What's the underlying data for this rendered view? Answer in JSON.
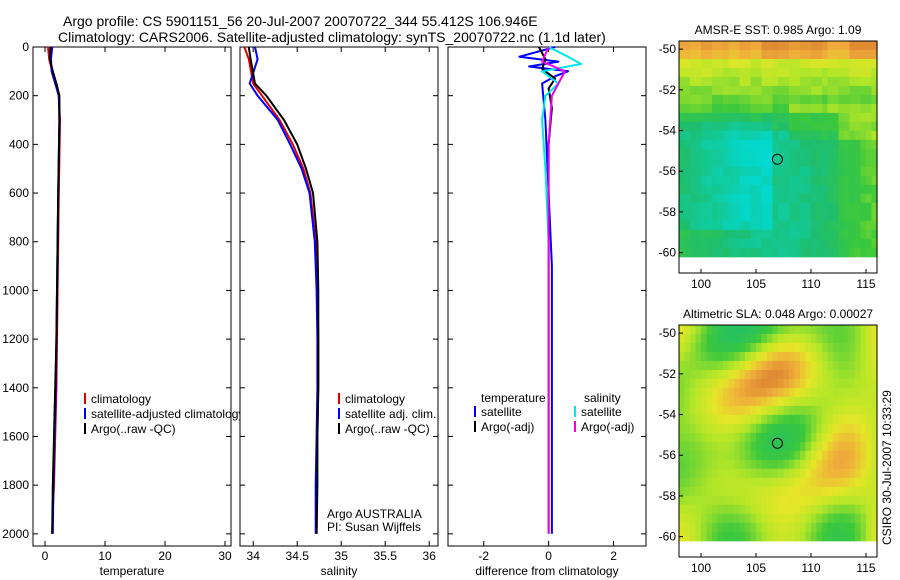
{
  "header": {
    "line1": "Argo profile: CS 5901151_56 20-Jul-2007 20070722_344 55.412S 106.946E",
    "line2": "Climatology: CARS2006. Satellite-adjusted climatology: synTS_20070722.nc (1.1d later)"
  },
  "credit": "CSIRO 30-Jul-2007 10:33:29",
  "colors": {
    "climatology": "#e00000",
    "satellite": "#0000ff",
    "argo": "#000000",
    "satellite_salinity": "#00e8ee",
    "argo_salinity": "#ee00ee"
  },
  "chart_data": [
    {
      "id": "temperature",
      "type": "line",
      "xlabel": "temperature",
      "ylabel": "",
      "xlim": [
        -2,
        31
      ],
      "ylim": [
        2050,
        0
      ],
      "xticks": [
        "0",
        "10",
        "20",
        "30"
      ],
      "xtick_values": [
        0,
        10,
        20,
        30
      ],
      "yticks": [
        "0",
        "200",
        "400",
        "600",
        "800",
        "1000",
        "1200",
        "1400",
        "1600",
        "1800",
        "2000"
      ],
      "ytick_values": [
        0,
        200,
        400,
        600,
        800,
        1000,
        1200,
        1400,
        1600,
        1800,
        2000
      ],
      "legend": [
        "climatology",
        "satellite-adjusted climatology",
        "Argo(..raw -QC)"
      ],
      "series": [
        {
          "name": "climatology",
          "color": "#e00000",
          "x": [
            0.5,
            0.7,
            1.2,
            1.8,
            2.3,
            2.5,
            2.4,
            2.3,
            2.2,
            2.1,
            2.0,
            1.9,
            1.7,
            1.5,
            1.3,
            1.2
          ],
          "y": [
            0,
            50,
            100,
            150,
            200,
            300,
            450,
            600,
            800,
            1000,
            1200,
            1400,
            1600,
            1800,
            1900,
            2000
          ]
        },
        {
          "name": "satellite-adjusted climatology",
          "color": "#0000ff",
          "x": [
            1.2,
            1.0,
            1.1,
            1.7,
            2.3,
            2.4,
            2.3,
            2.2,
            2.1,
            2.0,
            1.9,
            1.8,
            1.6,
            1.4,
            1.3
          ],
          "y": [
            0,
            50,
            100,
            150,
            200,
            300,
            450,
            600,
            800,
            1000,
            1200,
            1400,
            1600,
            1800,
            2000
          ]
        },
        {
          "name": "Argo(..raw -QC)",
          "color": "#000000",
          "x": [
            0.9,
            0.8,
            1.3,
            1.9,
            2.4,
            2.4,
            2.3,
            2.2,
            2.1,
            2.0,
            1.9,
            1.7,
            1.5,
            1.3,
            1.2
          ],
          "y": [
            0,
            50,
            100,
            150,
            200,
            300,
            450,
            600,
            800,
            1000,
            1200,
            1400,
            1600,
            1800,
            2000
          ]
        }
      ]
    },
    {
      "id": "salinity",
      "type": "line",
      "xlabel": "salinity",
      "ylabel": "",
      "xlim": [
        33.85,
        36.1
      ],
      "ylim": [
        2050,
        0
      ],
      "xticks": [
        "34",
        "34.5",
        "35",
        "35.5",
        "36"
      ],
      "xtick_values": [
        34,
        34.5,
        35,
        35.5,
        36
      ],
      "legend": [
        "climatology",
        "satellite adj. clim.",
        "Argo(..raw -QC)"
      ],
      "annotations": [
        "Argo AUSTRALIA",
        "PI: Susan Wijffels"
      ],
      "series": [
        {
          "name": "climatology",
          "color": "#e00000",
          "x": [
            33.9,
            33.95,
            34.0,
            34.1,
            34.3,
            34.45,
            34.57,
            34.65,
            34.71,
            34.73,
            34.74,
            34.74,
            34.73,
            34.72,
            34.72
          ],
          "y": [
            0,
            50,
            150,
            200,
            300,
            400,
            500,
            600,
            800,
            1000,
            1200,
            1400,
            1600,
            1800,
            2000
          ]
        },
        {
          "name": "satellite adj. clim.",
          "color": "#0000ff",
          "x": [
            34.02,
            34.05,
            33.96,
            34.05,
            34.28,
            34.42,
            34.55,
            34.64,
            34.7,
            34.72,
            34.73,
            34.73,
            34.72,
            34.71,
            34.71
          ],
          "y": [
            0,
            50,
            150,
            200,
            300,
            400,
            500,
            600,
            800,
            1000,
            1200,
            1400,
            1600,
            1800,
            2000
          ]
        },
        {
          "name": "Argo(..raw -QC)",
          "color": "#000000",
          "x": [
            33.95,
            33.97,
            34.02,
            34.15,
            34.35,
            34.5,
            34.6,
            34.68,
            34.73,
            34.74,
            34.74,
            34.74,
            34.73,
            34.73,
            34.72
          ],
          "y": [
            0,
            50,
            150,
            200,
            300,
            400,
            500,
            600,
            800,
            1000,
            1200,
            1400,
            1600,
            1800,
            2000
          ]
        }
      ]
    },
    {
      "id": "difference",
      "type": "line",
      "xlabel": "difference from climatology",
      "ylabel": "",
      "xlim": [
        -3.1,
        3.0
      ],
      "ylim": [
        2050,
        0
      ],
      "xticks": [
        "-2",
        "0",
        "2"
      ],
      "xtick_values": [
        -2,
        0,
        2
      ],
      "legend_headers": [
        "temperature",
        "salinity"
      ],
      "legend_left": [
        "satellite",
        "Argo(-adj)"
      ],
      "legend_right": [
        "satellite",
        "Argo(-adj)"
      ],
      "series": [
        {
          "name": "temperature satellite",
          "color": "#0000ff",
          "x": [
            0.2,
            -0.9,
            0.3,
            -0.6,
            0.6,
            0.2,
            -0.2,
            -0.1,
            0.0,
            0.1,
            0.1,
            0.1,
            0.1,
            0.1
          ],
          "y": [
            0,
            40,
            60,
            80,
            100,
            120,
            150,
            300,
            600,
            900,
            1200,
            1500,
            1800,
            2000
          ]
        },
        {
          "name": "temperature Argo(-adj)",
          "color": "#000000",
          "x": [
            -0.3,
            -0.1,
            -0.2,
            0.2,
            0.0,
            0.1,
            0.0,
            0.0,
            0.0,
            0.0,
            0.0,
            0.0,
            0.0
          ],
          "y": [
            0,
            50,
            90,
            130,
            170,
            250,
            400,
            700,
            1000,
            1300,
            1600,
            1800,
            2000
          ]
        },
        {
          "name": "salinity satellite",
          "color": "#00e8ee",
          "x": [
            0.0,
            0.6,
            1.0,
            -0.2,
            0.3,
            -0.1,
            -0.2,
            -0.1,
            0.0,
            0.0,
            0.0,
            0.0,
            0.0
          ],
          "y": [
            0,
            40,
            70,
            100,
            150,
            200,
            300,
            500,
            800,
            1100,
            1400,
            1700,
            2000
          ]
        },
        {
          "name": "salinity Argo(-adj)",
          "color": "#ee00ee",
          "x": [
            0.0,
            -0.2,
            0.5,
            0.3,
            0.1,
            0.0,
            0.0,
            0.0,
            0.0,
            0.0
          ],
          "y": [
            0,
            60,
            100,
            150,
            200,
            400,
            800,
            1200,
            1600,
            2000
          ]
        }
      ]
    },
    {
      "id": "sst_map",
      "type": "heatmap",
      "title": "AMSR-E SST: 0.985 Argo: 1.09",
      "xlim": [
        98,
        116
      ],
      "ylim": [
        -61,
        -49.6
      ],
      "xticks": [
        "100",
        "105",
        "110",
        "115"
      ],
      "xtick_values": [
        100,
        105,
        110,
        115
      ],
      "yticks": [
        "-50",
        "-52",
        "-54",
        "-56",
        "-58",
        "-60"
      ],
      "ytick_values": [
        -50,
        -52,
        -54,
        -56,
        -58,
        -60
      ],
      "data_extent_lat": [
        -60.2,
        -49.6
      ],
      "marker": {
        "lon": 106.946,
        "lat": -55.412
      }
    },
    {
      "id": "sla_map",
      "type": "heatmap",
      "title": "Altimetric SLA: 0.048 Argo: 0.00027",
      "xlim": [
        98,
        116
      ],
      "ylim": [
        -61,
        -49.6
      ],
      "xticks": [
        "100",
        "105",
        "110",
        "115"
      ],
      "xtick_values": [
        100,
        105,
        110,
        115
      ],
      "yticks": [
        "-50",
        "-52",
        "-54",
        "-56",
        "-58",
        "-60"
      ],
      "ytick_values": [
        -50,
        -52,
        -54,
        -56,
        -58,
        -60
      ],
      "data_extent_lat": [
        -60.2,
        -49.6
      ],
      "marker": {
        "lon": 106.946,
        "lat": -55.412
      }
    }
  ]
}
